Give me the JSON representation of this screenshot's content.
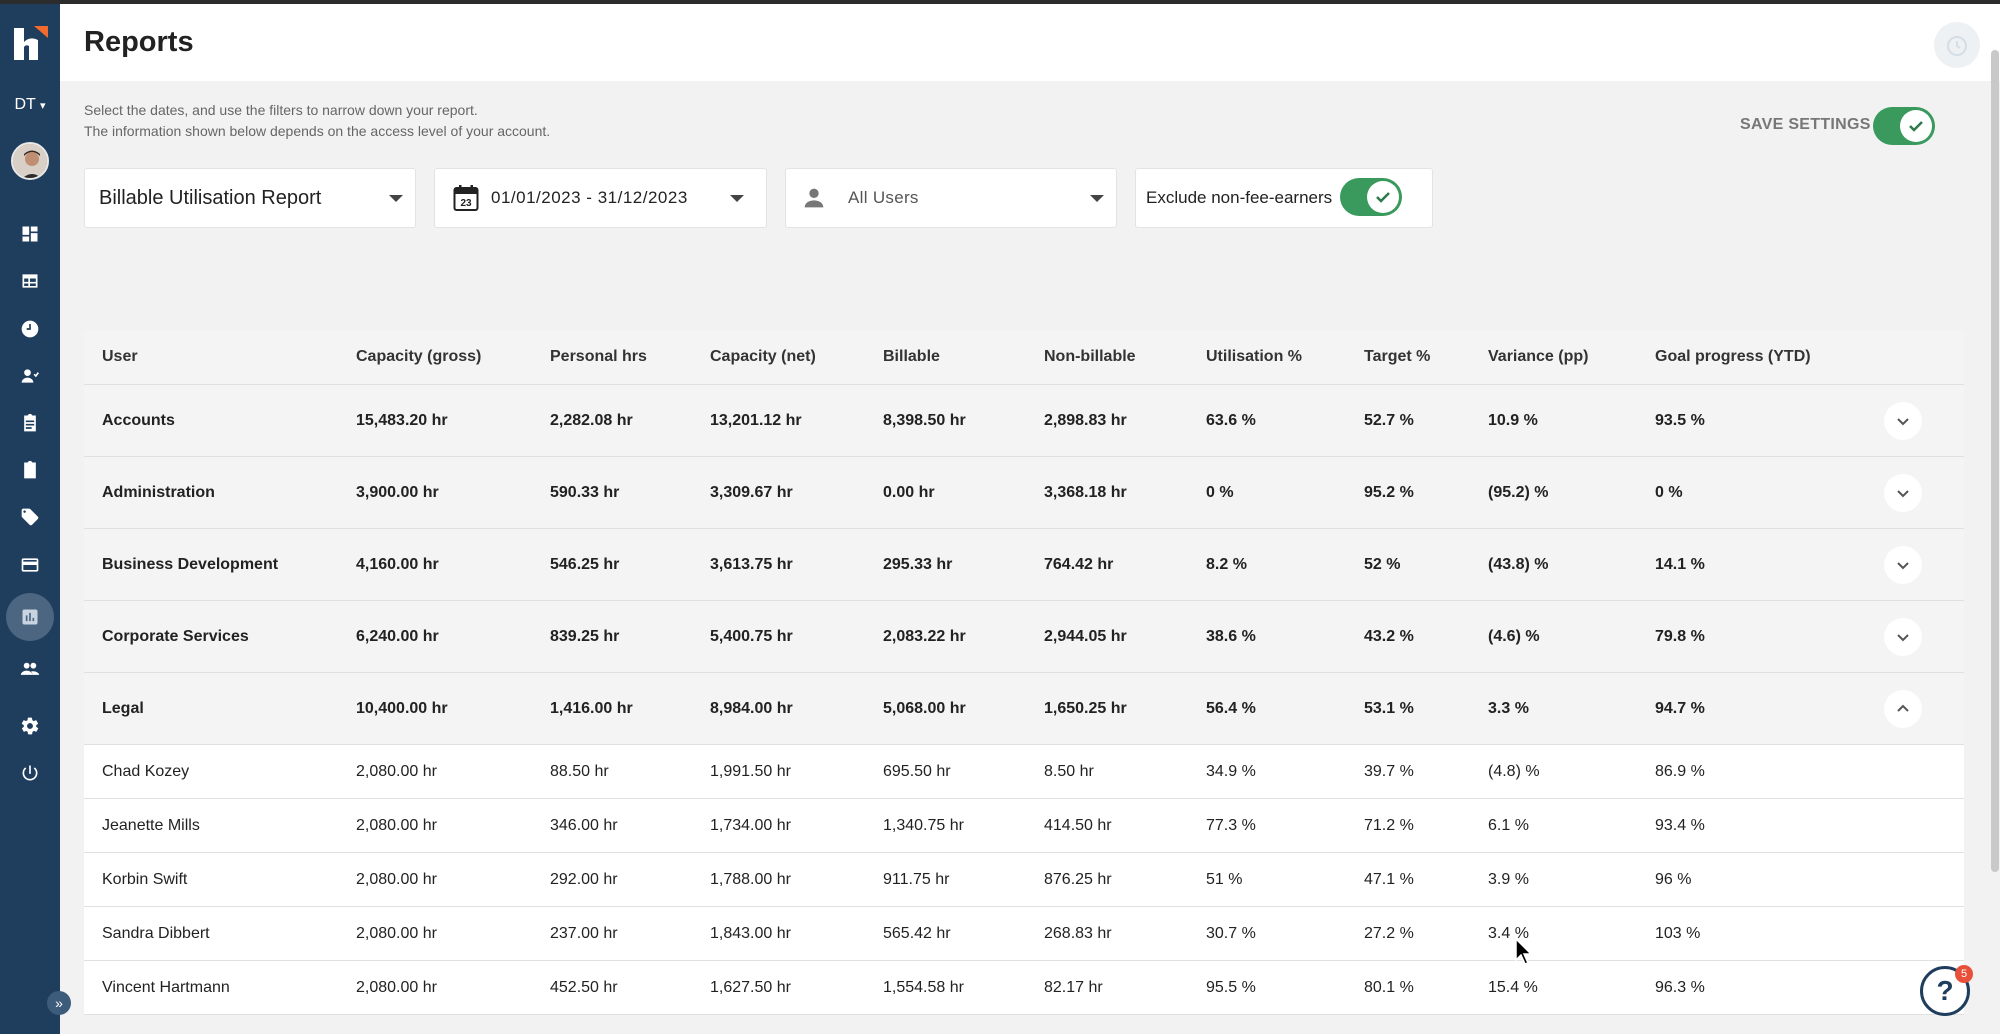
{
  "app": {
    "workspace": "DT"
  },
  "header": {
    "title": "Reports"
  },
  "info": {
    "line1": "Select the dates, and use the filters to narrow down your report.",
    "line2": "The information shown below depends on the access level of your account."
  },
  "save_settings": {
    "label": "SAVE SETTINGS",
    "enabled": true
  },
  "filters": {
    "report": "Billable Utilisation Report",
    "date_range": "01/01/2023 - 31/12/2023",
    "calendar_day": "23",
    "users": "All Users",
    "exclude_label": "Exclude non-fee-earners",
    "exclude_enabled": true
  },
  "table": {
    "columns": [
      "User",
      "Capacity (gross)",
      "Personal hrs",
      "Capacity (net)",
      "Billable",
      "Non-billable",
      "Utilisation %",
      "Target %",
      "Variance (pp)",
      "Goal progress (YTD)"
    ],
    "groups": [
      {
        "cells": [
          "Accounts",
          "15,483.20 hr",
          "2,282.08 hr",
          "13,201.12 hr",
          "8,398.50 hr",
          "2,898.83 hr",
          "63.6 %",
          "52.7 %",
          "10.9 %",
          "93.5 %"
        ],
        "expanded": false
      },
      {
        "cells": [
          "Administration",
          "3,900.00 hr",
          "590.33 hr",
          "3,309.67 hr",
          "0.00 hr",
          "3,368.18 hr",
          "0 %",
          "95.2 %",
          "(95.2) %",
          "0 %"
        ],
        "expanded": false
      },
      {
        "cells": [
          "Business Development",
          "4,160.00 hr",
          "546.25 hr",
          "3,613.75 hr",
          "295.33 hr",
          "764.42 hr",
          "8.2 %",
          "52 %",
          "(43.8) %",
          "14.1 %"
        ],
        "expanded": false
      },
      {
        "cells": [
          "Corporate Services",
          "6,240.00 hr",
          "839.25 hr",
          "5,400.75 hr",
          "2,083.22 hr",
          "2,944.05 hr",
          "38.6 %",
          "43.2 %",
          "(4.6) %",
          "79.8 %"
        ],
        "expanded": false
      },
      {
        "cells": [
          "Legal",
          "10,400.00 hr",
          "1,416.00 hr",
          "8,984.00 hr",
          "5,068.00 hr",
          "1,650.25 hr",
          "56.4 %",
          "53.1 %",
          "3.3 %",
          "94.7 %"
        ],
        "expanded": true
      }
    ],
    "users": [
      [
        "Chad Kozey",
        "2,080.00 hr",
        "88.50 hr",
        "1,991.50 hr",
        "695.50 hr",
        "8.50 hr",
        "34.9 %",
        "39.7 %",
        "(4.8) %",
        "86.9 %"
      ],
      [
        "Jeanette Mills",
        "2,080.00 hr",
        "346.00 hr",
        "1,734.00 hr",
        "1,340.75 hr",
        "414.50 hr",
        "77.3 %",
        "71.2 %",
        "6.1 %",
        "93.4 %"
      ],
      [
        "Korbin Swift",
        "2,080.00 hr",
        "292.00 hr",
        "1,788.00 hr",
        "911.75 hr",
        "876.25 hr",
        "51 %",
        "47.1 %",
        "3.9 %",
        "96 %"
      ],
      [
        "Sandra Dibbert",
        "2,080.00 hr",
        "237.00 hr",
        "1,843.00 hr",
        "565.42 hr",
        "268.83 hr",
        "30.7 %",
        "27.2 %",
        "3.4 %",
        "103 %"
      ],
      [
        "Vincent Hartmann",
        "2,080.00 hr",
        "452.50 hr",
        "1,627.50 hr",
        "1,554.58 hr",
        "82.17 hr",
        "95.5 %",
        "80.1 %",
        "15.4 %",
        "96.3 %"
      ]
    ]
  },
  "help": {
    "badge": "5",
    "icon": "?"
  },
  "colors": {
    "sidebar": "#1f3d5c",
    "toggle_on": "#3a9a5e",
    "accent_logo": "#f26a2e"
  }
}
